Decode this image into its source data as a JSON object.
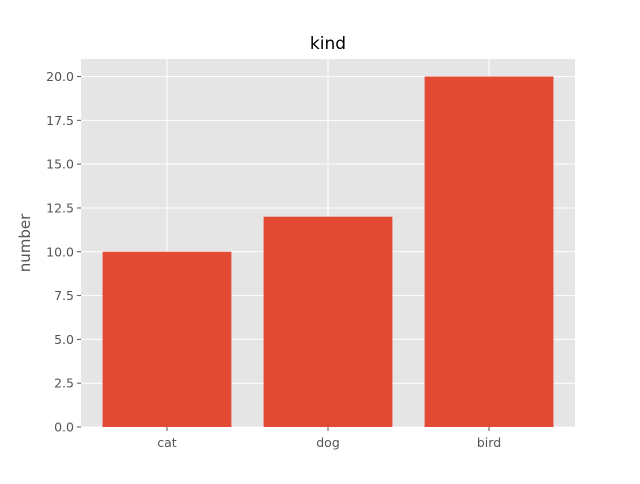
{
  "chart_data": {
    "type": "bar",
    "title": "kind",
    "xlabel": "",
    "ylabel": "number",
    "categories": [
      "cat",
      "dog",
      "bird"
    ],
    "values": [
      10,
      12,
      20
    ],
    "ylim": [
      0,
      21
    ],
    "yticks": [
      0.0,
      2.5,
      5.0,
      7.5,
      10.0,
      12.5,
      15.0,
      17.5,
      20.0
    ],
    "ytick_labels": [
      "0.0",
      "2.5",
      "5.0",
      "7.5",
      "10.0",
      "12.5",
      "15.0",
      "17.5",
      "20.0"
    ],
    "grid": true,
    "style": "ggplot",
    "colors": {
      "bar": "#E24A33",
      "background": "#E5E5E5",
      "grid": "#FFFFFF",
      "tick_text": "#555555",
      "title": "#000000"
    }
  }
}
